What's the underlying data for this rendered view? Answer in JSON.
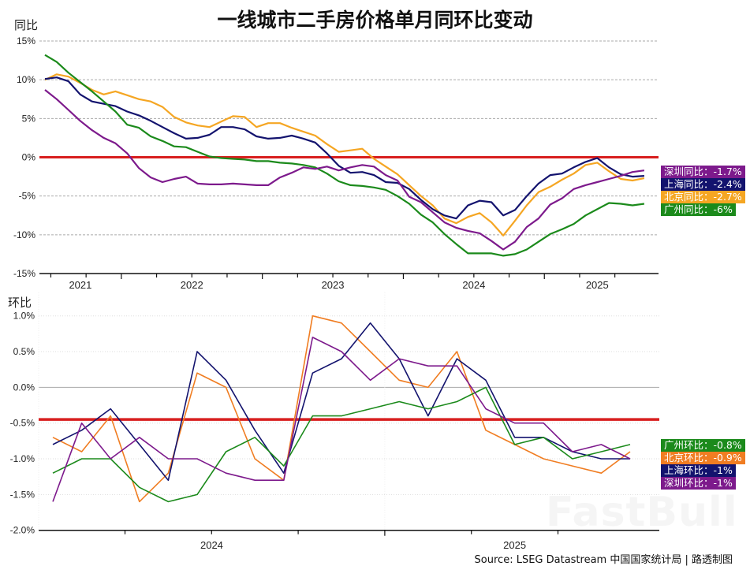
{
  "title": "一线城市二手房价格单月同环比变动",
  "source": "Source: LSEG Datastream 中国国家统计局 | 路透制图",
  "watermark": "FastBull",
  "chart_data": [
    {
      "type": "line",
      "ylabel": "同比",
      "ylim": [
        -15,
        15
      ],
      "yticks": [
        "15%",
        "10%",
        "5%",
        "0%",
        "-5%",
        "-10%",
        "-15%"
      ],
      "ytick_values": [
        15,
        10,
        5,
        0,
        -5,
        -10,
        -15
      ],
      "year_labels": [
        "2021",
        "2022",
        "2023",
        "2024",
        "2025"
      ],
      "reference_line": 0,
      "reference_color": "#d81e1e",
      "grid": "horizontal dashed",
      "legend_placement": "right",
      "x": [
        "2021-06",
        "2021-07",
        "2021-08",
        "2021-09",
        "2021-10",
        "2021-11",
        "2021-12",
        "2022-01",
        "2022-02",
        "2022-03",
        "2022-04",
        "2022-05",
        "2022-06",
        "2022-07",
        "2022-08",
        "2022-09",
        "2022-10",
        "2022-11",
        "2022-12",
        "2023-01",
        "2023-02",
        "2023-03",
        "2023-04",
        "2023-05",
        "2023-06",
        "2023-07",
        "2023-08",
        "2023-09",
        "2023-10",
        "2023-11",
        "2023-12",
        "2024-01",
        "2024-02",
        "2024-03",
        "2024-04",
        "2024-05",
        "2024-06",
        "2024-07",
        "2024-08",
        "2024-09",
        "2024-10",
        "2024-11",
        "2024-12",
        "2025-01",
        "2025-02",
        "2025-03",
        "2025-04",
        "2025-05",
        "2025-06",
        "2025-07",
        "2025-08",
        "2025-09"
      ],
      "series": [
        {
          "name": "北京同比",
          "label": "北京同比：-2.7%",
          "color": "#f5a623",
          "values": [
            10.0,
            10.7,
            10.4,
            9.6,
            8.7,
            8.1,
            8.5,
            8.0,
            7.5,
            7.2,
            6.5,
            5.2,
            4.5,
            4.1,
            3.9,
            4.6,
            5.3,
            5.2,
            3.9,
            4.4,
            4.4,
            3.8,
            3.3,
            2.8,
            1.7,
            0.7,
            0.9,
            1.1,
            -0.2,
            -1.2,
            -2.2,
            -3.6,
            -5.0,
            -6.2,
            -7.9,
            -8.5,
            -7.7,
            -7.2,
            -8.4,
            -10.1,
            -8.2,
            -6.2,
            -4.5,
            -3.8,
            -2.9,
            -2.1,
            -1.0,
            -0.7,
            -1.8,
            -2.8,
            -3.0,
            -2.7
          ]
        },
        {
          "name": "上海同比",
          "label": "上海同比：-2.4%",
          "color": "#13136e",
          "values": [
            10.1,
            10.3,
            9.8,
            8.1,
            7.2,
            6.9,
            6.6,
            5.9,
            5.4,
            4.7,
            3.9,
            3.1,
            2.4,
            2.5,
            2.9,
            3.9,
            3.9,
            3.6,
            2.7,
            2.4,
            2.5,
            2.8,
            2.4,
            1.9,
            0.5,
            -1.1,
            -2.0,
            -1.9,
            -2.3,
            -3.2,
            -3.3,
            -4.1,
            -5.5,
            -6.7,
            -7.5,
            -7.9,
            -6.2,
            -5.6,
            -5.8,
            -7.5,
            -6.8,
            -5.0,
            -3.4,
            -2.3,
            -2.1,
            -1.3,
            -0.6,
            -0.1,
            -1.3,
            -2.2,
            -2.5,
            -2.4
          ]
        },
        {
          "name": "广州同比",
          "label": "广州同比：-6%",
          "color": "#1b8a1b",
          "values": [
            13.2,
            12.3,
            10.9,
            9.7,
            8.5,
            7.2,
            5.9,
            4.2,
            3.8,
            2.7,
            2.1,
            1.4,
            1.3,
            0.7,
            0.1,
            -0.1,
            -0.2,
            -0.3,
            -0.5,
            -0.5,
            -0.7,
            -0.8,
            -1.0,
            -1.3,
            -2.1,
            -3.1,
            -3.6,
            -3.7,
            -3.9,
            -4.2,
            -5.0,
            -6.0,
            -7.4,
            -8.4,
            -9.9,
            -11.2,
            -12.4,
            -12.4,
            -12.4,
            -12.7,
            -12.5,
            -11.9,
            -10.9,
            -9.9,
            -9.3,
            -8.6,
            -7.5,
            -6.7,
            -5.9,
            -6.0,
            -6.2,
            -6.0
          ]
        },
        {
          "name": "深圳同比",
          "label": "深圳同比：-1.7%",
          "color": "#7d1a8c",
          "values": [
            8.7,
            7.5,
            6.1,
            4.7,
            3.5,
            2.5,
            1.8,
            0.5,
            -1.4,
            -2.6,
            -3.2,
            -2.8,
            -2.5,
            -3.4,
            -3.5,
            -3.5,
            -3.4,
            -3.5,
            -3.6,
            -3.6,
            -2.6,
            -2.0,
            -1.3,
            -1.5,
            -1.2,
            -1.7,
            -1.3,
            -1.0,
            -1.2,
            -2.3,
            -3.0,
            -5.1,
            -5.8,
            -7.1,
            -8.4,
            -9.1,
            -9.5,
            -9.8,
            -10.8,
            -11.9,
            -10.9,
            -9.0,
            -7.9,
            -6.1,
            -5.3,
            -4.1,
            -3.6,
            -3.2,
            -2.8,
            -2.4,
            -1.9,
            -1.7
          ]
        }
      ],
      "legend_order": [
        3,
        1,
        0,
        2
      ]
    },
    {
      "type": "line",
      "ylabel": "环比",
      "ylim": [
        -2.0,
        1.0
      ],
      "yticks": [
        "1.0%",
        "0.5%",
        "0.0%",
        "-0.5%",
        "-1.0%",
        "-1.5%",
        "-2.0%"
      ],
      "ytick_values": [
        1.0,
        0.5,
        0.0,
        -0.5,
        -1.0,
        -1.5,
        -2.0
      ],
      "year_labels": [
        "2024",
        "2025"
      ],
      "reference_line": -0.45,
      "reference_color": "#d81e1e",
      "grid": "horizontal dotted",
      "legend_placement": "right",
      "x": [
        "2024-01",
        "2024-02",
        "2024-03",
        "2024-04",
        "2024-05",
        "2024-06",
        "2024-07",
        "2024-08",
        "2024-09",
        "2024-10",
        "2024-11",
        "2024-12",
        "2025-01",
        "2025-02",
        "2025-03",
        "2025-04",
        "2025-05",
        "2025-06",
        "2025-07",
        "2025-08",
        "2025-09"
      ],
      "series": [
        {
          "name": "北京环比",
          "label": "北京环比：-0.9%",
          "color": "#f07d22",
          "values": [
            -0.7,
            -0.9,
            -0.4,
            -1.6,
            -1.2,
            0.2,
            0.0,
            -1.0,
            -1.3,
            1.0,
            0.9,
            0.5,
            0.1,
            0.0,
            0.5,
            -0.6,
            -0.8,
            -1.0,
            -1.1,
            -1.2,
            -0.9
          ]
        },
        {
          "name": "上海环比",
          "label": "上海环比：-1%",
          "color": "#13136e",
          "values": [
            -0.8,
            -0.6,
            -0.3,
            -0.8,
            -1.3,
            0.5,
            0.1,
            -0.6,
            -1.2,
            0.2,
            0.4,
            0.9,
            0.4,
            -0.4,
            0.4,
            0.1,
            -0.7,
            -0.7,
            -0.9,
            -1.0,
            -1.0
          ]
        },
        {
          "name": "广州环比",
          "label": "广州环比：-0.8%",
          "color": "#1b8a1b",
          "values": [
            -1.2,
            -1.0,
            -1.0,
            -1.4,
            -1.6,
            -1.5,
            -0.9,
            -0.7,
            -1.1,
            -0.4,
            -0.4,
            -0.3,
            -0.2,
            -0.3,
            -0.2,
            0.0,
            -0.8,
            -0.7,
            -1.0,
            -0.9,
            -0.8
          ]
        },
        {
          "name": "深圳环比",
          "label": "深圳环比：-1%",
          "color": "#7d1a8c",
          "values": [
            -1.6,
            -0.5,
            -1.0,
            -0.7,
            -1.0,
            -1.0,
            -1.2,
            -1.3,
            -1.3,
            0.7,
            0.5,
            0.1,
            0.4,
            0.3,
            0.3,
            -0.3,
            -0.5,
            -0.5,
            -0.9,
            -0.8,
            -1.0
          ]
        }
      ],
      "legend_order": [
        2,
        0,
        1,
        3
      ]
    }
  ]
}
